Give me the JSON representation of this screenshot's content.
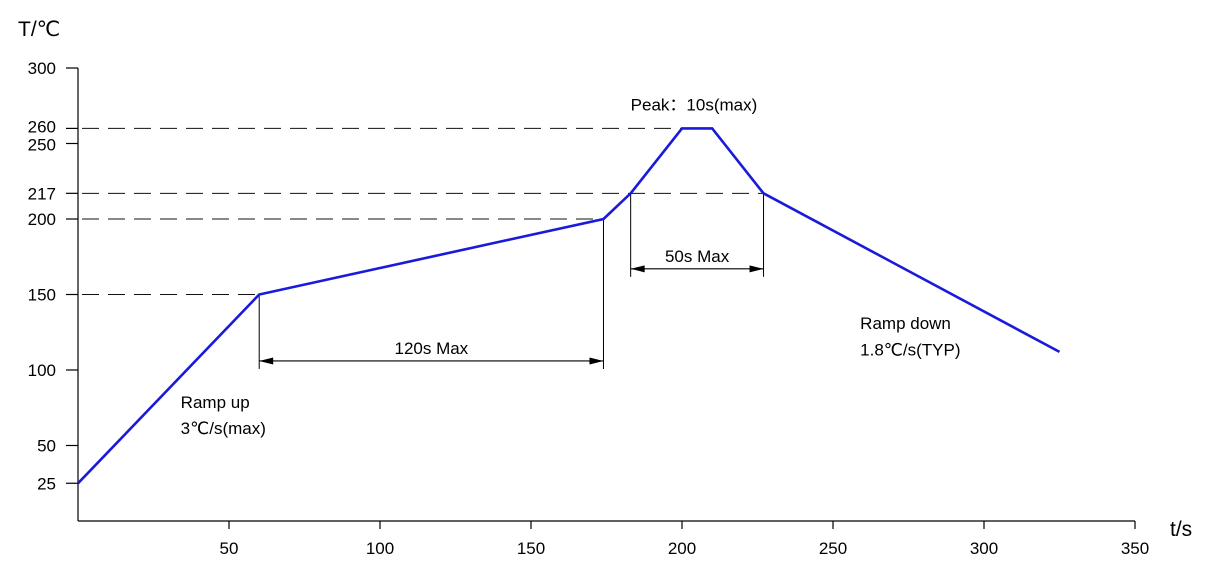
{
  "chart_data": {
    "type": "line",
    "title": "",
    "xlabel": "t/s",
    "ylabel": "T/℃",
    "xlim": [
      0,
      350
    ],
    "ylim": [
      0,
      300
    ],
    "x_ticks": [
      50,
      100,
      150,
      200,
      250,
      300,
      350
    ],
    "y_ticks": [
      25,
      50,
      100,
      150,
      200,
      217,
      250,
      260,
      300
    ],
    "series": [
      {
        "color": "#1a1adb",
        "points": [
          [
            0,
            25
          ],
          [
            60,
            150
          ],
          [
            174,
            200
          ],
          [
            183,
            217
          ],
          [
            200,
            260
          ],
          [
            210,
            260
          ],
          [
            227,
            217
          ],
          [
            325,
            112
          ]
        ]
      }
    ],
    "reference_lines": [
      {
        "y": 150,
        "x_end": 60
      },
      {
        "y": 200,
        "x_end": 174
      },
      {
        "y": 217,
        "x_end": 227
      },
      {
        "y": 260,
        "x_end": 210
      }
    ],
    "spans": [
      {
        "label": "120s Max",
        "x_start": 60,
        "x_end": 174,
        "y": 106
      },
      {
        "label": "50s Max",
        "x_start": 183,
        "x_end": 227,
        "y": 167
      }
    ],
    "annotations": [
      {
        "lines": [
          "Peak：10s(max)"
        ],
        "x": 183,
        "y": 272
      },
      {
        "lines": [
          "Ramp up",
          "3℃/s(max)"
        ],
        "x": 34,
        "y": 75
      },
      {
        "lines": [
          "Ramp down",
          "1.8℃/s(TYP)"
        ],
        "x": 259,
        "y": 127
      }
    ]
  }
}
